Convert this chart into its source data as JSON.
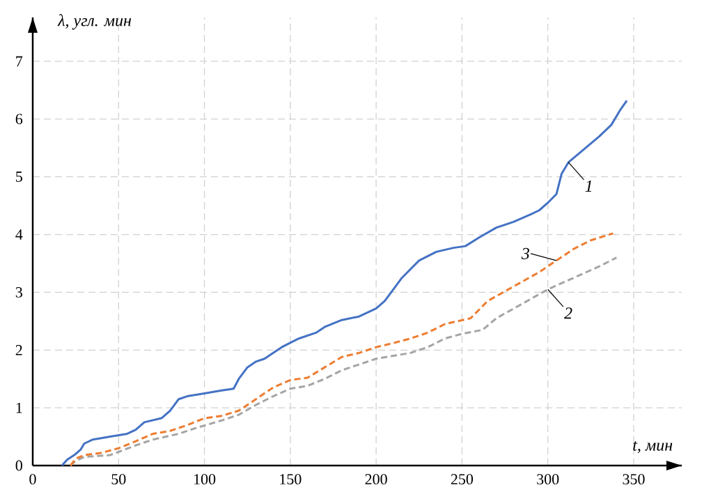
{
  "chart_data": {
    "type": "line",
    "xlabel": "t, мин",
    "ylabel": "λ, угл. мин",
    "xlim": [
      0,
      378
    ],
    "ylim": [
      0,
      7.76
    ],
    "xticks": [
      0,
      50,
      100,
      150,
      200,
      250,
      300,
      350
    ],
    "yticks": [
      0,
      1,
      2,
      3,
      4,
      5,
      6,
      7
    ],
    "grid": true,
    "marker": "none",
    "series": [
      {
        "name": "1",
        "color": "#4472c4",
        "line_style": "solid",
        "x": [
          17,
          20,
          25,
          28,
          30,
          35,
          45,
          55,
          60,
          65,
          75,
          80,
          85,
          90,
          100,
          110,
          117,
          120,
          125,
          130,
          135,
          145,
          155,
          160,
          165,
          170,
          180,
          190,
          200,
          205,
          210,
          215,
          220,
          225,
          235,
          245,
          252,
          260,
          270,
          280,
          290,
          295,
          300,
          305,
          308,
          312,
          320,
          330,
          337,
          342,
          346
        ],
        "values": [
          0,
          0.1,
          0.2,
          0.28,
          0.38,
          0.45,
          0.5,
          0.55,
          0.62,
          0.75,
          0.82,
          0.95,
          1.15,
          1.2,
          1.25,
          1.3,
          1.33,
          1.5,
          1.7,
          1.8,
          1.85,
          2.05,
          2.2,
          2.25,
          2.3,
          2.4,
          2.52,
          2.58,
          2.72,
          2.85,
          3.05,
          3.25,
          3.4,
          3.55,
          3.7,
          3.77,
          3.8,
          3.95,
          4.12,
          4.22,
          4.35,
          4.42,
          4.55,
          4.7,
          5.05,
          5.25,
          5.45,
          5.7,
          5.9,
          6.15,
          6.32
        ]
      },
      {
        "name": "2",
        "color": "#a5a5a5",
        "line_style": "dashed",
        "x": [
          22,
          25,
          30,
          45,
          60,
          70,
          85,
          95,
          110,
          120,
          130,
          140,
          150,
          160,
          170,
          180,
          190,
          200,
          210,
          220,
          230,
          240,
          250,
          262,
          270,
          285,
          300,
          315,
          330,
          340
        ],
        "values": [
          0,
          0.08,
          0.15,
          0.18,
          0.35,
          0.45,
          0.55,
          0.65,
          0.78,
          0.88,
          1.05,
          1.2,
          1.33,
          1.38,
          1.5,
          1.65,
          1.75,
          1.85,
          1.9,
          1.95,
          2.05,
          2.2,
          2.28,
          2.35,
          2.55,
          2.8,
          3.05,
          3.25,
          3.45,
          3.6
        ]
      },
      {
        "name": "3",
        "color": "#ed7d31",
        "line_style": "dashed",
        "x": [
          22,
          25,
          30,
          40,
          50,
          60,
          70,
          80,
          90,
          100,
          110,
          120,
          130,
          140,
          150,
          160,
          170,
          180,
          190,
          200,
          210,
          220,
          230,
          240,
          255,
          265,
          280,
          295,
          305,
          315,
          325,
          338
        ],
        "values": [
          0,
          0.12,
          0.18,
          0.22,
          0.3,
          0.42,
          0.55,
          0.6,
          0.7,
          0.82,
          0.86,
          0.95,
          1.15,
          1.35,
          1.48,
          1.52,
          1.7,
          1.88,
          1.95,
          2.05,
          2.12,
          2.2,
          2.3,
          2.45,
          2.55,
          2.85,
          3.1,
          3.35,
          3.55,
          3.75,
          3.9,
          4.02
        ]
      }
    ]
  }
}
